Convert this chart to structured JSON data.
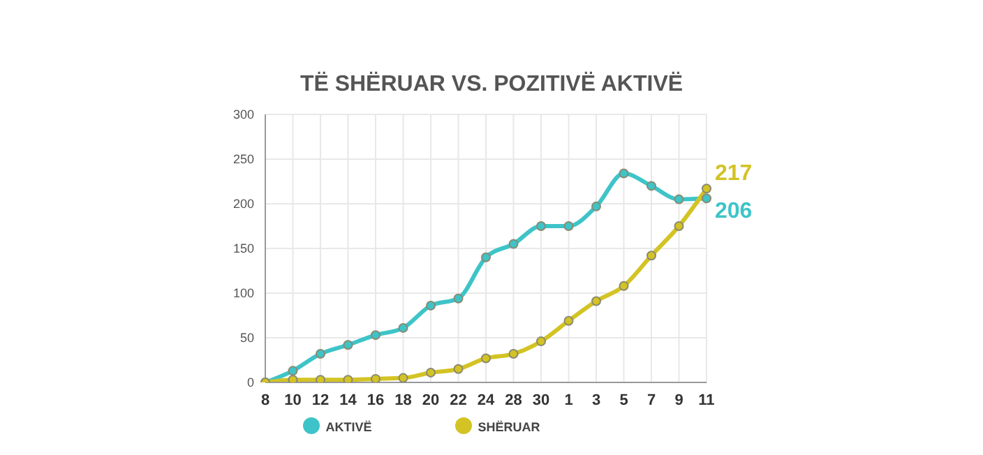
{
  "chart_data": {
    "type": "line",
    "title": "TË SHËRUAR VS. POZITIVË AKTIVË",
    "categories": [
      "8",
      "10",
      "12",
      "14",
      "16",
      "18",
      "20",
      "22",
      "24",
      "28",
      "30",
      "1",
      "3",
      "5",
      "7",
      "9",
      "11"
    ],
    "series": [
      {
        "name": "AKTIVË",
        "color": "#3ec4c8",
        "values": [
          0,
          13,
          32,
          42,
          53,
          61,
          86,
          94,
          140,
          155,
          175,
          175,
          197,
          234,
          220,
          205,
          206
        ],
        "value_labels": [
          null,
          null,
          null,
          null,
          null,
          null,
          null,
          null,
          null,
          null,
          null,
          null,
          null,
          null,
          null,
          null,
          "206"
        ]
      },
      {
        "name": "SHËRUAR",
        "color": "#d3c324",
        "values": [
          0,
          3,
          3,
          3,
          4,
          5,
          11,
          15,
          27,
          32,
          46,
          69,
          91,
          108,
          142,
          175,
          217
        ],
        "value_labels": [
          null,
          null,
          null,
          null,
          null,
          null,
          null,
          null,
          null,
          null,
          null,
          null,
          null,
          null,
          null,
          null,
          "217"
        ]
      }
    ],
    "ylim": [
      0,
      300
    ],
    "yticks": [
      0,
      50,
      100,
      150,
      200,
      250,
      300
    ],
    "grid": true,
    "legend": "bottom",
    "marker": "circle",
    "line_style": "solid"
  }
}
